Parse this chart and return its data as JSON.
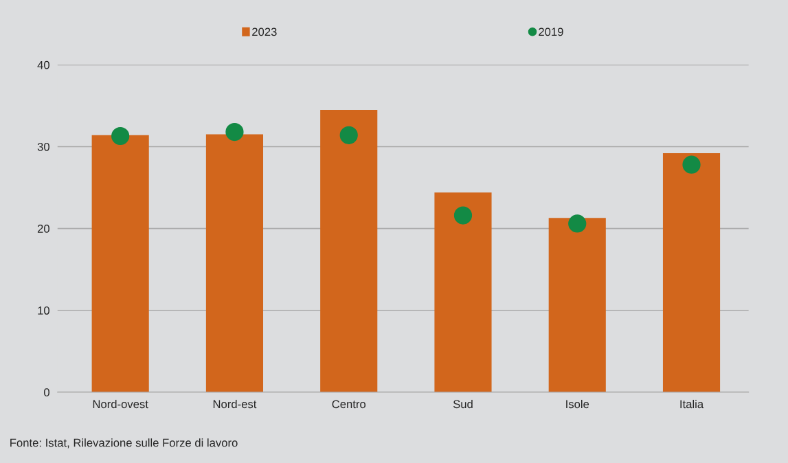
{
  "chart_data": {
    "type": "bar",
    "categories": [
      "Nord-ovest",
      "Nord-est",
      "Centro",
      "Sud",
      "Isole",
      "Italia"
    ],
    "series": [
      {
        "name": "2023",
        "color": "#d2661c",
        "values": [
          31.4,
          31.5,
          34.5,
          24.4,
          21.3,
          29.2
        ]
      },
      {
        "name": "2019",
        "type": "scatter",
        "color": "#138a45",
        "marker": "circle",
        "values": [
          31.3,
          31.8,
          31.4,
          21.6,
          20.6,
          27.8
        ]
      }
    ],
    "ylim": [
      0,
      40
    ],
    "yticks": [
      0,
      10,
      20,
      30,
      40
    ],
    "grid": "y",
    "legend": "top",
    "annotations": [
      "Fonte: Istat, Rilevazione sulle Forze di lavoro"
    ]
  }
}
